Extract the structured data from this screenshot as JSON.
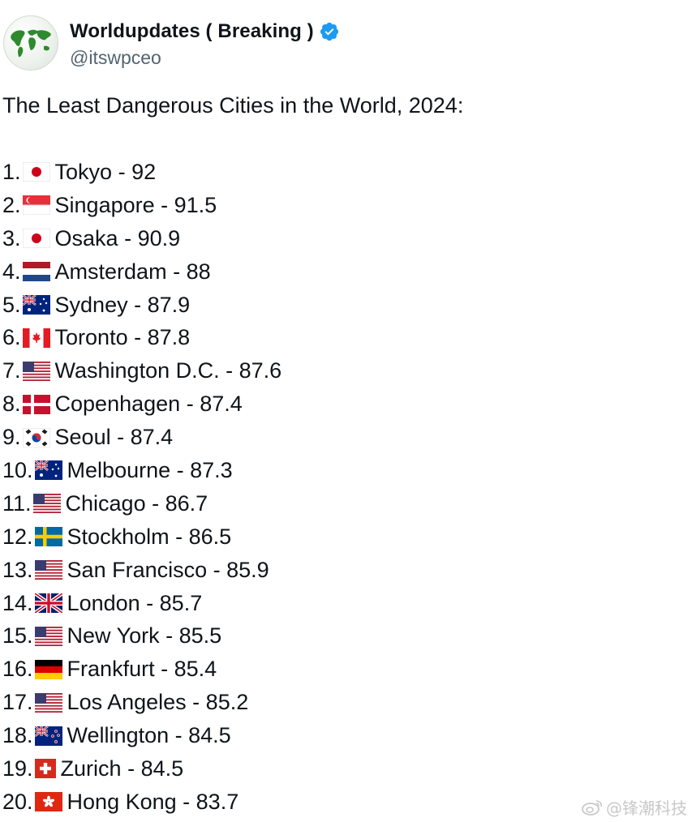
{
  "author": {
    "display_name": "Worldupdates ( Breaking )",
    "handle": "@itswpceo",
    "avatar_icon": "globe-map-icon",
    "verified_icon": "verified-badge-icon",
    "verified_color": "#1d9bf0"
  },
  "tweet": {
    "headline": "The Least Dangerous Cities in the World, 2024:",
    "items": [
      {
        "rank": "1.",
        "flag": "jp",
        "city": "Tokyo",
        "score": "92"
      },
      {
        "rank": "2.",
        "flag": "sg",
        "city": "Singapore",
        "score": "91.5"
      },
      {
        "rank": "3.",
        "flag": "jp",
        "city": "Osaka",
        "score": "90.9"
      },
      {
        "rank": "4.",
        "flag": "nl",
        "city": "Amsterdam",
        "score": "88"
      },
      {
        "rank": "5.",
        "flag": "au",
        "city": "Sydney",
        "score": "87.9"
      },
      {
        "rank": "6.",
        "flag": "ca",
        "city": "Toronto",
        "score": "87.8"
      },
      {
        "rank": "7.",
        "flag": "us",
        "city": "Washington D.C.",
        "score": "87.6"
      },
      {
        "rank": "8.",
        "flag": "dk",
        "city": "Copenhagen",
        "score": "87.4"
      },
      {
        "rank": "9.",
        "flag": "kr",
        "city": "Seoul",
        "score": "87.4"
      },
      {
        "rank": "10.",
        "flag": "au",
        "city": "Melbourne",
        "score": "87.3"
      },
      {
        "rank": "11.",
        "flag": "us",
        "city": "Chicago",
        "score": "86.7"
      },
      {
        "rank": "12.",
        "flag": "se",
        "city": "Stockholm",
        "score": "86.5"
      },
      {
        "rank": "13.",
        "flag": "us",
        "city": "San Francisco",
        "score": "85.9"
      },
      {
        "rank": "14.",
        "flag": "gb",
        "city": "London",
        "score": "85.7"
      },
      {
        "rank": "15.",
        "flag": "us",
        "city": "New York",
        "score": "85.5"
      },
      {
        "rank": "16.",
        "flag": "de",
        "city": "Frankfurt",
        "score": "85.4"
      },
      {
        "rank": "17.",
        "flag": "us",
        "city": "Los Angeles",
        "score": "85.2"
      },
      {
        "rank": "18.",
        "flag": "nz",
        "city": "Wellington",
        "score": "84.5"
      },
      {
        "rank": "19.",
        "flag": "ch",
        "city": "Zurich",
        "score": "84.5"
      },
      {
        "rank": "20.",
        "flag": "hk",
        "city": "Hong Kong",
        "score": "83.7"
      }
    ]
  },
  "watermark": {
    "text": "@锋潮科技",
    "icon": "weibo-icon"
  }
}
